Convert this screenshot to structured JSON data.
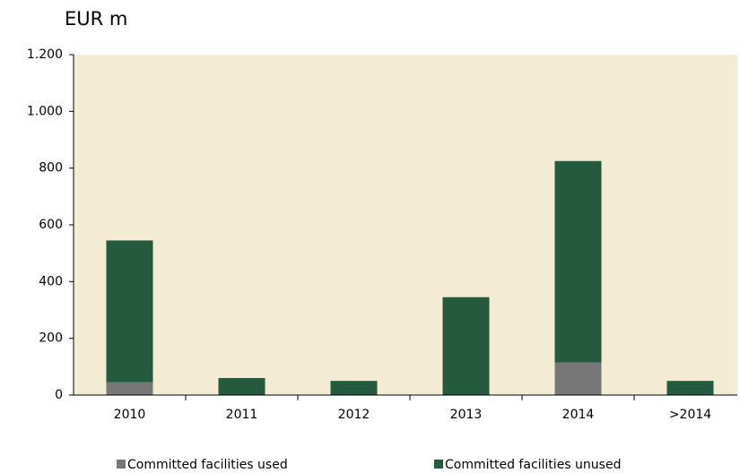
{
  "chart_data": {
    "type": "stacked_bar",
    "title": "EUR m",
    "categories": [
      "2010",
      "2011",
      "2012",
      "2013",
      "2014",
      ">2014"
    ],
    "series": [
      {
        "name": "Committed facilities used",
        "color": "#777777",
        "values": [
          45,
          0,
          0,
          0,
          115,
          0
        ]
      },
      {
        "name": "Committed facilities unused",
        "color": "#245a3e",
        "values": [
          500,
          60,
          50,
          345,
          710,
          50
        ]
      }
    ],
    "ylim": [
      0,
      1200
    ],
    "yticks": [
      0,
      200,
      400,
      600,
      800,
      {
        "value": 1000,
        "label": "1.000"
      },
      {
        "value": 1200,
        "label": "1.200"
      }
    ],
    "background": "#f3ebd4"
  }
}
